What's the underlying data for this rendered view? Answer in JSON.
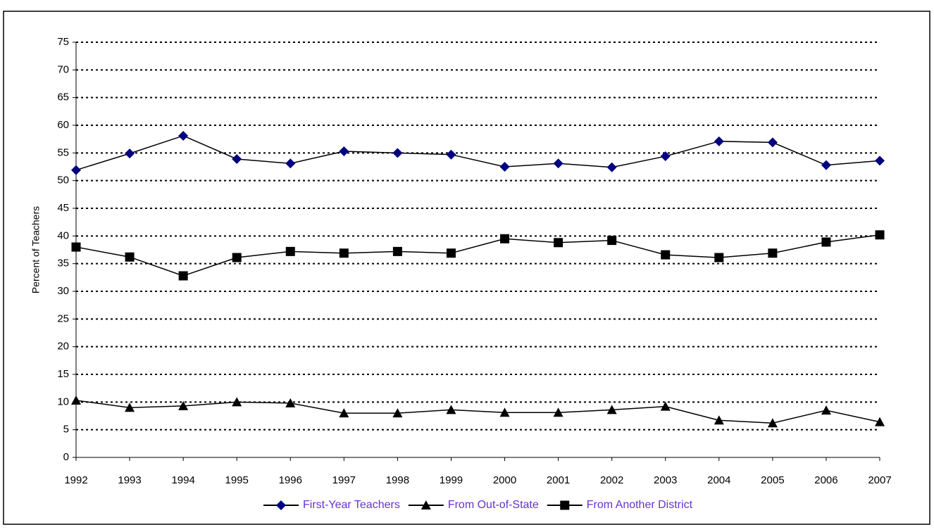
{
  "chart_data": {
    "type": "line",
    "y_label": "Percent of Teachers",
    "categories": [
      "1992",
      "1993",
      "1994",
      "1995",
      "1996",
      "1997",
      "1998",
      "1999",
      "2000",
      "2001",
      "2002",
      "2003",
      "2004",
      "2005",
      "2006",
      "2007"
    ],
    "series": [
      {
        "name": "First-Year Teachers",
        "color": "#000080",
        "marker": "diamond",
        "line_color": "#000000",
        "values": [
          51.9,
          54.9,
          58.1,
          53.9,
          53.1,
          55.3,
          55.0,
          54.7,
          52.5,
          53.1,
          52.4,
          54.4,
          57.1,
          56.9,
          52.8,
          53.6
        ]
      },
      {
        "name": "From Out-of-State",
        "color": "#000000",
        "marker": "triangle",
        "line_color": "#000000",
        "values": [
          10.3,
          9.0,
          9.3,
          10.0,
          9.8,
          8.0,
          8.0,
          8.6,
          8.1,
          8.1,
          8.6,
          9.2,
          6.7,
          6.2,
          8.5,
          6.4
        ]
      },
      {
        "name": "From Another District",
        "color": "#000000",
        "marker": "square",
        "line_color": "#000000",
        "values": [
          38.0,
          36.2,
          32.8,
          36.1,
          37.2,
          36.9,
          37.2,
          36.9,
          39.5,
          38.8,
          39.2,
          36.6,
          36.1,
          36.9,
          38.9,
          40.2
        ]
      }
    ],
    "ylim": [
      0,
      75
    ],
    "yticks": [
      0,
      5,
      10,
      15,
      20,
      25,
      30,
      35,
      40,
      45,
      50,
      55,
      60,
      65,
      70,
      75
    ],
    "grid": true,
    "legend": "bottom"
  }
}
